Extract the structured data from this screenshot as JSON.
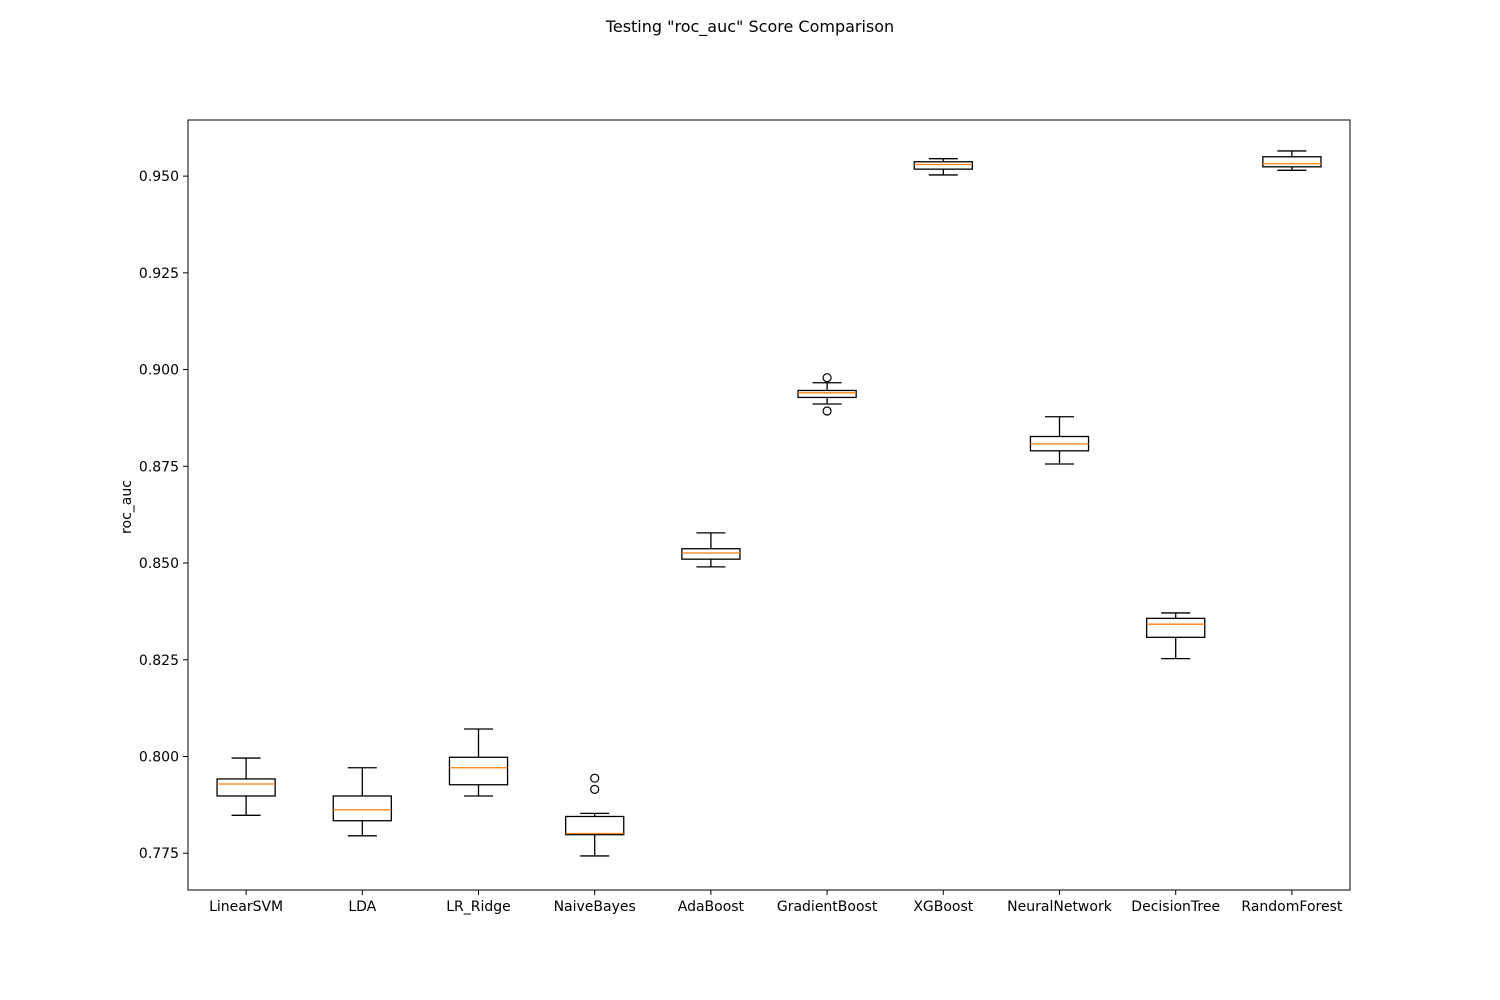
{
  "chart_data": {
    "type": "box",
    "title": "Testing \"roc_auc\" Score Comparison",
    "xlabel": "",
    "ylabel": "roc_auc",
    "ylim": [
      0.7655,
      0.9645
    ],
    "yticks": [
      0.775,
      0.8,
      0.825,
      0.85,
      0.875,
      0.9,
      0.925,
      0.95
    ],
    "ytick_labels": [
      "0.775",
      "0.800",
      "0.825",
      "0.850",
      "0.875",
      "0.900",
      "0.925",
      "0.950"
    ],
    "grid": false,
    "colors": {
      "box": "#000000",
      "median": "#ff7f0e"
    },
    "categories": [
      "LinearSVM",
      "LDA",
      "LR_Ridge",
      "NaiveBayes",
      "AdaBoost",
      "GradientBoost",
      "XGBoost",
      "NeuralNetwork",
      "DecisionTree",
      "RandomForest"
    ],
    "boxes": [
      {
        "whislo": 0.7848,
        "q1": 0.7898,
        "med": 0.7929,
        "q3": 0.7942,
        "whishi": 0.7996,
        "fliers": []
      },
      {
        "whislo": 0.7795,
        "q1": 0.7834,
        "med": 0.7862,
        "q3": 0.7898,
        "whishi": 0.7971,
        "fliers": []
      },
      {
        "whislo": 0.7898,
        "q1": 0.7927,
        "med": 0.7971,
        "q3": 0.7998,
        "whishi": 0.8071,
        "fliers": []
      },
      {
        "whislo": 0.7743,
        "q1": 0.7798,
        "med": 0.7801,
        "q3": 0.7845,
        "whishi": 0.7853,
        "fliers": [
          0.7944,
          0.7915
        ]
      },
      {
        "whislo": 0.849,
        "q1": 0.851,
        "med": 0.8526,
        "q3": 0.8537,
        "whishi": 0.8578,
        "fliers": []
      },
      {
        "whislo": 0.8911,
        "q1": 0.8928,
        "med": 0.894,
        "q3": 0.8946,
        "whishi": 0.8966,
        "fliers": [
          0.8979,
          0.8893
        ]
      },
      {
        "whislo": 0.9503,
        "q1": 0.9518,
        "med": 0.953,
        "q3": 0.9537,
        "whishi": 0.9545,
        "fliers": []
      },
      {
        "whislo": 0.8756,
        "q1": 0.879,
        "med": 0.8808,
        "q3": 0.8827,
        "whishi": 0.8878,
        "fliers": []
      },
      {
        "whislo": 0.8253,
        "q1": 0.8308,
        "med": 0.8342,
        "q3": 0.8357,
        "whishi": 0.8371,
        "fliers": []
      },
      {
        "whislo": 0.9515,
        "q1": 0.9524,
        "med": 0.9532,
        "q3": 0.955,
        "whishi": 0.9565,
        "fliers": []
      }
    ]
  }
}
